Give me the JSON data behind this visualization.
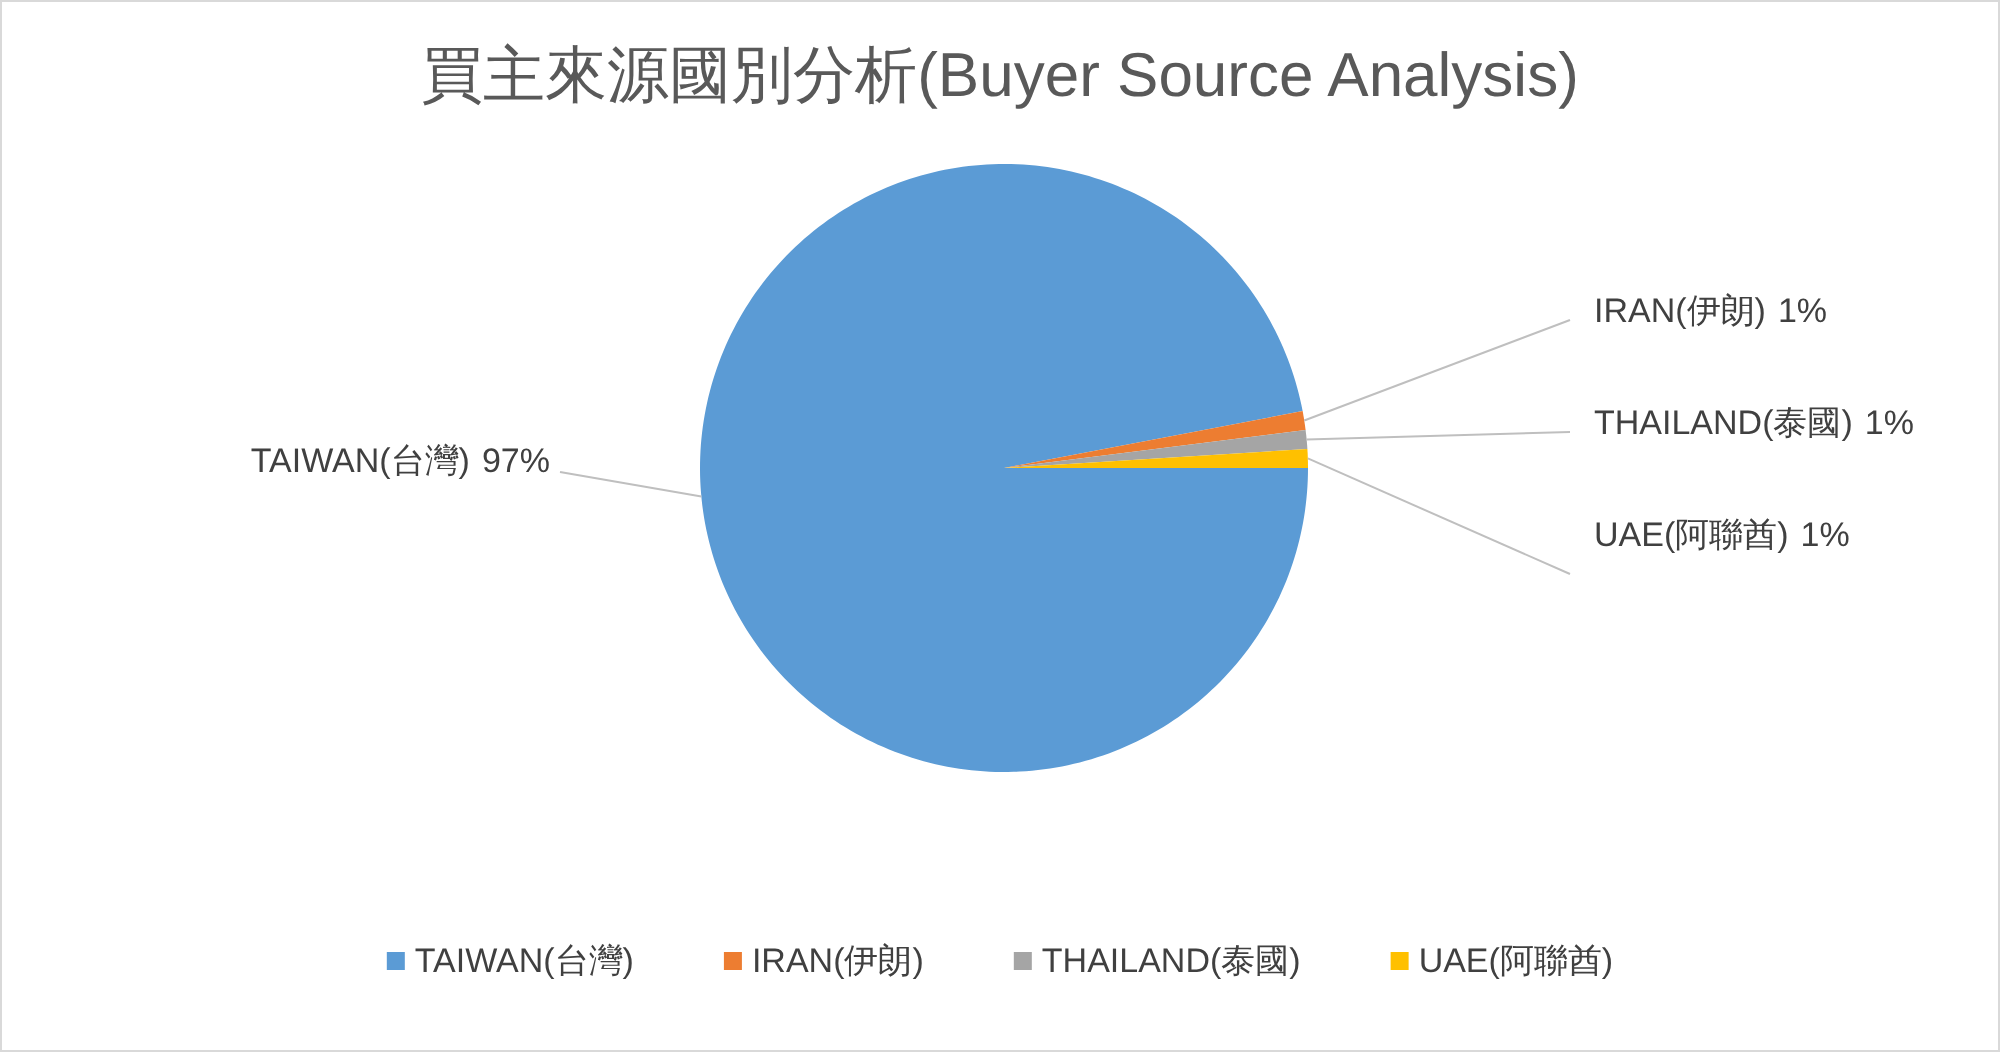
{
  "chart_data": {
    "type": "pie",
    "title": "買主來源國別分析(Buyer Source Analysis)",
    "categories": [
      "TAIWAN(台灣)",
      "IRAN(伊朗)",
      "THAILAND(泰國)",
      "UAE(阿聯酋)"
    ],
    "values": [
      97,
      1,
      1,
      1
    ],
    "colors": [
      "#5b9bd5",
      "#ed7d31",
      "#a5a5a5",
      "#ffc000"
    ],
    "value_labels": [
      "97%",
      "1%",
      "1%",
      "1%"
    ],
    "legend": "bottom"
  }
}
